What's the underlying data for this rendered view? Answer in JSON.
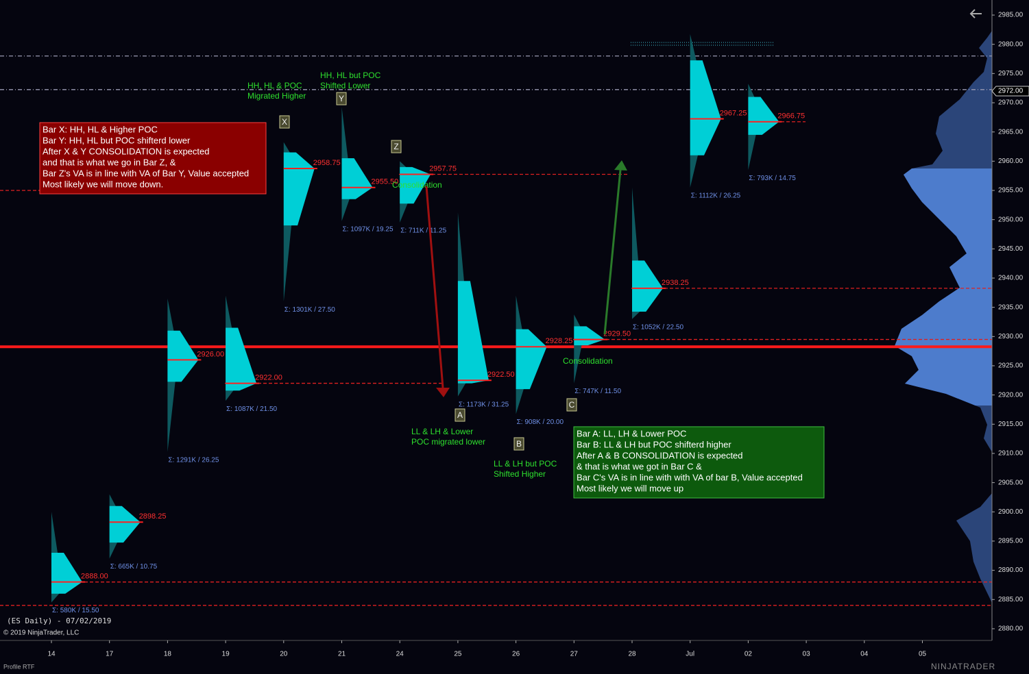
{
  "chart_data": {
    "type": "volume-profile",
    "ylim": [
      2878,
      2987.58
    ],
    "yticks": [
      {
        "value": 2880,
        "label": "2880.00"
      },
      {
        "value": 2885,
        "label": "2885.00"
      },
      {
        "value": 2890,
        "label": "2890.00"
      },
      {
        "value": 2895,
        "label": "2895.00"
      },
      {
        "value": 2900,
        "label": "2900.00"
      },
      {
        "value": 2905,
        "label": "2905.00"
      },
      {
        "value": 2910,
        "label": "2910.00"
      },
      {
        "value": 2915,
        "label": "2915.00"
      },
      {
        "value": 2920,
        "label": "2920.00"
      },
      {
        "value": 2925,
        "label": "2925.00"
      },
      {
        "value": 2930,
        "label": "2930.00"
      },
      {
        "value": 2935,
        "label": "2935.00"
      },
      {
        "value": 2940,
        "label": "2940.00"
      },
      {
        "value": 2945,
        "label": "2945.00"
      },
      {
        "value": 2950,
        "label": "2950.00"
      },
      {
        "value": 2955,
        "label": "2955.00"
      },
      {
        "value": 2960,
        "label": "2960.00"
      },
      {
        "value": 2965,
        "label": "2965.00"
      },
      {
        "value": 2970,
        "label": "2970.00"
      },
      {
        "value": 2975,
        "label": "2975.00"
      },
      {
        "value": 2980,
        "label": "2980.00"
      },
      {
        "value": 2985,
        "label": "2985.00"
      }
    ],
    "last_price": {
      "value": 2972,
      "label": "2972.00"
    },
    "categories": [
      "14",
      "17",
      "18",
      "19",
      "20",
      "21",
      "24",
      "25",
      "26",
      "27",
      "28",
      "Jul",
      "02",
      "03",
      "04",
      "05"
    ],
    "sessions": [
      {
        "date": "14",
        "high": 2900,
        "low": 2884.5,
        "vah": 2893,
        "val": 2886,
        "poc": 2888,
        "poc_label": "2888.00",
        "stat": "Σ: 580K / 15.50"
      },
      {
        "date": "17",
        "high": 2903,
        "low": 2892,
        "vah": 2901,
        "val": 2894.75,
        "poc": 2898.25,
        "poc_label": "2898.25",
        "stat": "Σ: 665K / 10.75"
      },
      {
        "date": "18",
        "high": 2936.5,
        "low": 2910.25,
        "vah": 2931,
        "val": 2922.25,
        "poc": 2926,
        "poc_label": "2926.00",
        "stat": "Σ: 1291K / 26.25"
      },
      {
        "date": "19",
        "high": 2937,
        "low": 2919,
        "vah": 2931.5,
        "val": 2920.75,
        "poc": 2922,
        "poc_label": "2922.00",
        "stat": "Σ: 1087K / 21.50"
      },
      {
        "date": "20",
        "high": 2963.25,
        "low": 2936,
        "vah": 2961.5,
        "val": 2949,
        "poc": 2958.75,
        "poc_label": "2958.75",
        "stat": "Σ: 1301K / 27.50"
      },
      {
        "date": "21",
        "high": 2969.25,
        "low": 2949.75,
        "vah": 2960.5,
        "val": 2953.5,
        "poc": 2955.5,
        "poc_label": "2955.50",
        "stat": "Σ: 1097K / 19.25"
      },
      {
        "date": "24",
        "high": 2960,
        "low": 2949.5,
        "vah": 2959,
        "val": 2952.75,
        "poc": 2957.75,
        "poc_label": "2957.75",
        "stat": "Σ: 711K / 11.25"
      },
      {
        "date": "25",
        "high": 2951.25,
        "low": 2919.75,
        "vah": 2939.5,
        "val": 2922,
        "poc": 2922.5,
        "poc_label": "2922.50",
        "stat": "Σ: 1173K / 31.25"
      },
      {
        "date": "26",
        "high": 2937,
        "low": 2916.75,
        "vah": 2931.25,
        "val": 2921,
        "poc": 2928.25,
        "poc_label": "2928.25",
        "stat": "Σ: 908K / 20.00"
      },
      {
        "date": "27",
        "high": 2933.75,
        "low": 2922,
        "vah": 2931.75,
        "val": 2928.5,
        "poc": 2929.5,
        "poc_label": "2929.50",
        "stat": "Σ: 747K / 11.50"
      },
      {
        "date": "28",
        "high": 2955.5,
        "low": 2933,
        "vah": 2943,
        "val": 2934.25,
        "poc": 2938.25,
        "poc_label": "2938.25",
        "stat": "Σ: 1052K / 22.50"
      },
      {
        "date": "Jul",
        "high": 2981.75,
        "low": 2955.5,
        "vah": 2977.25,
        "val": 2961,
        "poc": 2967.25,
        "poc_label": "2967.25",
        "stat": "Σ: 1112K / 26.25"
      },
      {
        "date": "02",
        "high": 2973.25,
        "low": 2958.5,
        "vah": 2971,
        "val": 2964.5,
        "poc": 2966.75,
        "poc_label": "2966.75",
        "stat": "Σ: 793K / 14.75"
      }
    ],
    "levels": [
      {
        "value": 2928.25,
        "color": "#ff1a1a",
        "style": "solid"
      },
      {
        "value": 2884,
        "color": "#e02020",
        "style": "dashed"
      },
      {
        "value": 2888,
        "color": "#e02020",
        "style": "dashed"
      },
      {
        "value": 2955,
        "color": "#e02020",
        "style": "dashed"
      },
      {
        "value": 2922,
        "color": "#e02020",
        "style": "dashed"
      },
      {
        "value": 2957.75,
        "color": "#e02020",
        "style": "dashed"
      },
      {
        "value": 2938.25,
        "color": "#e02020",
        "style": "dashed"
      },
      {
        "value": 2929.5,
        "color": "#e02020",
        "style": "dashed"
      },
      {
        "value": 2966.75,
        "color": "#e02020",
        "style": "dashed"
      },
      {
        "value": 2978,
        "color": "#9a9ab4",
        "style": "dashdot"
      },
      {
        "value": 2972.25,
        "color": "#9a9ab4",
        "style": "dashdot"
      }
    ],
    "notes": [
      {
        "lines": [
          "Bar X: HH, HL & Higher POC",
          "Bar Y: HH,  HL but POC shifterd lower",
          "After X & Y CONSOLIDATION is expected",
          "and that is what we go in Bar Z,  &",
          "Bar Z's VA is in line with VA of Bar Y, Value accepted",
          "Most likely we will move down."
        ]
      },
      {
        "lines": [
          "Bar A: LL, LH & Lower POC",
          "Bar B: LL & LH but POC shifterd higher",
          "After A & B CONSOLIDATION is expected",
          "& that is what we got in Bar C &",
          "Bar C's VA is in line with  with VA of bar B, Value accepted",
          "Most likely we will move up"
        ]
      }
    ],
    "annotations": [
      {
        "lines": [
          "HH, HL & POC",
          "Migrated Higher"
        ]
      },
      {
        "lines": [
          "HH, HL but POC",
          "Shifted Lower"
        ]
      },
      {
        "lines": [
          "Consolidation"
        ]
      },
      {
        "lines": [
          "LL & LH & Lower",
          "POC migrated lower"
        ]
      },
      {
        "lines": [
          "LL & LH but POC",
          "Shifted Higher"
        ]
      },
      {
        "lines": [
          "Consolidation"
        ]
      }
    ],
    "bar_labels": [
      "X",
      "Y",
      "Z",
      "A",
      "B",
      "C"
    ]
  },
  "footer": {
    "instrument": "(ES Daily) - 07/02/2019",
    "copyright": "© 2019 NinjaTrader, LLC",
    "tab": "Profile RTF",
    "brand": "NINJATRADER"
  }
}
